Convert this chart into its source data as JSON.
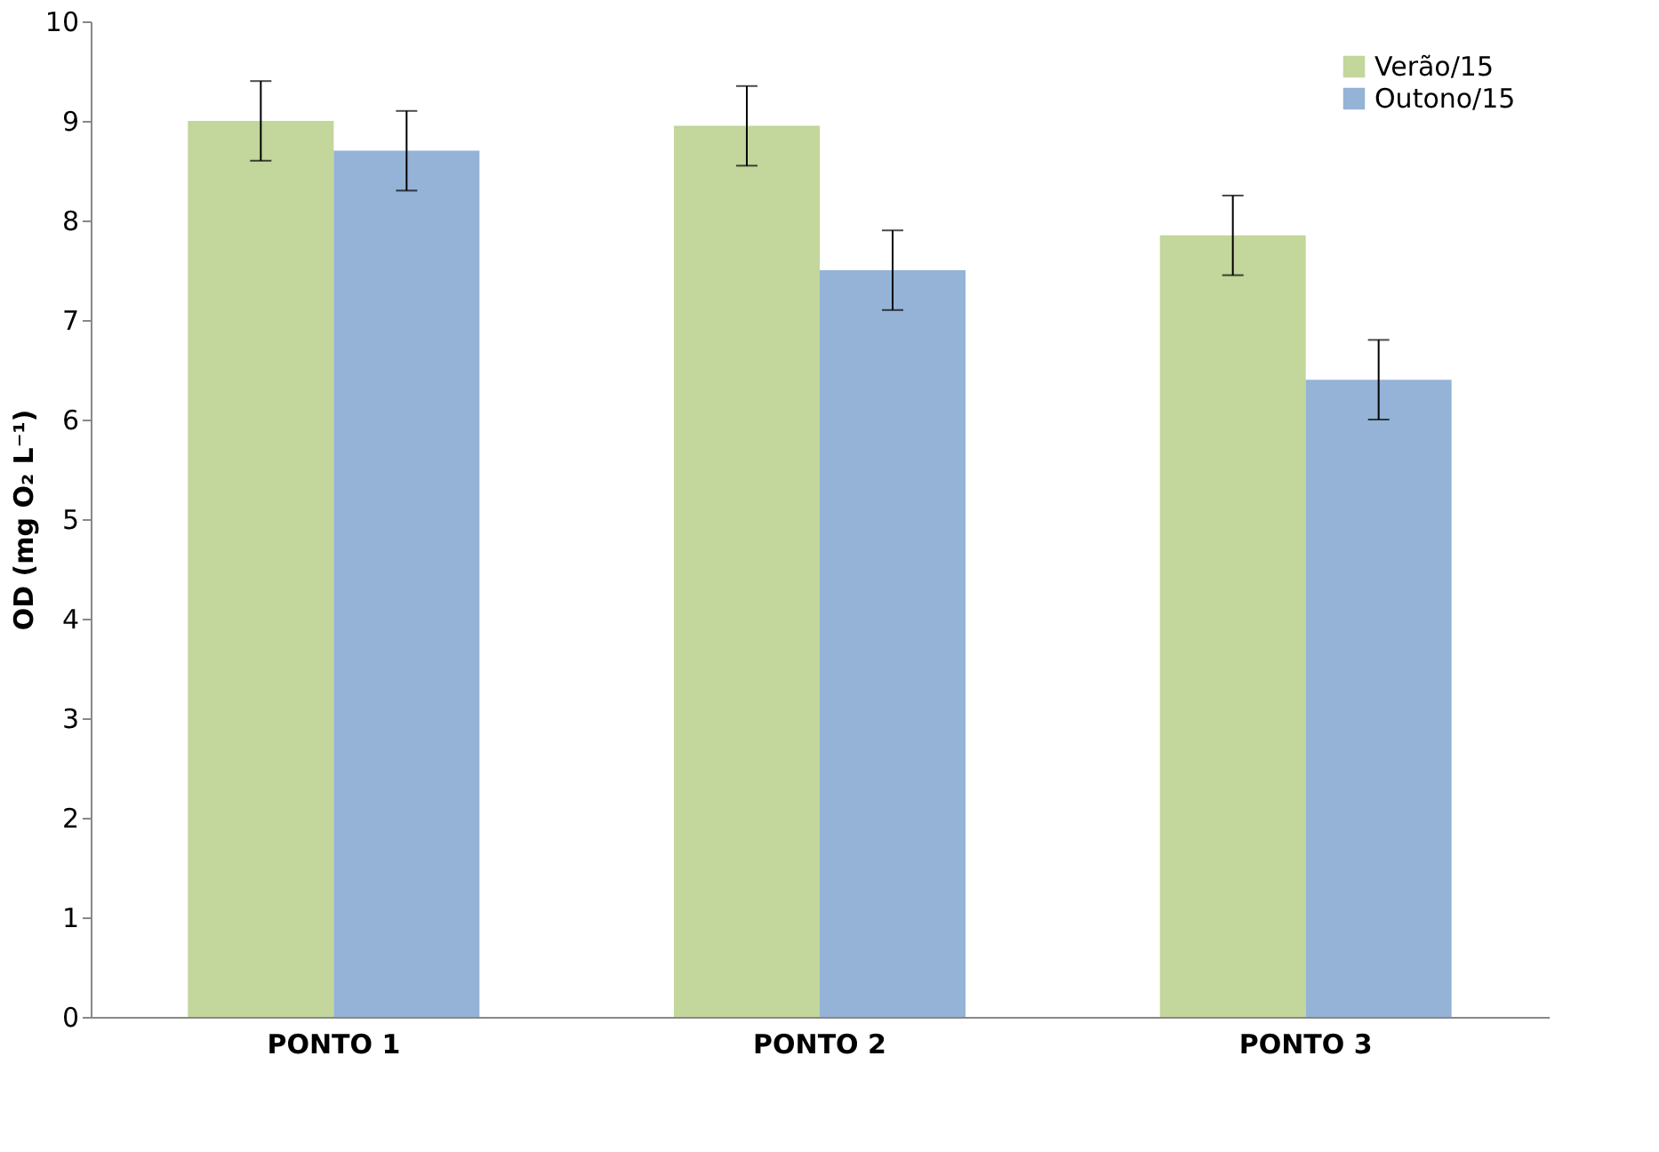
{
  "chart_data": {
    "type": "bar",
    "ylabel": "OD (mg O₂ L⁻¹)",
    "categories": [
      "PONTO 1",
      "PONTO 2",
      "PONTO 3"
    ],
    "series": [
      {
        "name": "Verão/15",
        "color": "#c3d69b",
        "values": [
          9.0,
          8.95,
          7.85
        ],
        "errors": [
          0.4,
          0.4,
          0.4
        ]
      },
      {
        "name": "Outono/15",
        "color": "#95b3d7",
        "values": [
          8.7,
          7.5,
          6.4
        ],
        "errors": [
          0.4,
          0.4,
          0.4
        ]
      }
    ],
    "ylim": [
      0,
      10
    ],
    "yticks": [
      0,
      1,
      2,
      3,
      4,
      5,
      6,
      7,
      8,
      9,
      10
    ],
    "grid": false,
    "legend": "top right"
  }
}
